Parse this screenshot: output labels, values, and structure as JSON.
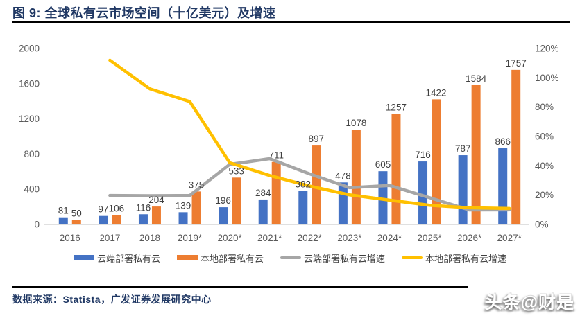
{
  "figure": {
    "title": "图 9: 全球私有云市场空间（十亿美元）及增速",
    "source": "数据来源：Statista，广发证券发展研究中心",
    "watermark": "头条@财是"
  },
  "colors": {
    "title_navy": "#203864",
    "bar_blue": "#4472C4",
    "bar_orange": "#ED7D31",
    "line_gray": "#A6A6A6",
    "line_yellow": "#FFC000",
    "axis_text": "#595959",
    "data_label": "#404040",
    "axis_line": "#d6d6d6"
  },
  "chart_data": {
    "type": "bar",
    "subtype": "combo-bar-line",
    "title": "全球私有云市场空间（十亿美元）及增速",
    "categories": [
      "2016",
      "2017",
      "2018",
      "2019*",
      "2020*",
      "2021*",
      "2022*",
      "2023*",
      "2024*",
      "2025*",
      "2026*",
      "2027*"
    ],
    "series": [
      {
        "name": "云端部署私有云",
        "type": "bar",
        "axis": "left",
        "color": "#4472C4",
        "values": [
          81,
          97,
          116,
          139,
          196,
          284,
          382,
          478,
          605,
          716,
          787,
          866
        ]
      },
      {
        "name": "本地部署私有云",
        "type": "bar",
        "axis": "left",
        "color": "#ED7D31",
        "values": [
          50,
          106,
          204,
          375,
          533,
          711,
          897,
          1078,
          1257,
          1422,
          1584,
          1757
        ]
      },
      {
        "name": "云端部署私有云增速",
        "type": "line",
        "axis": "right",
        "color": "#A6A6A6",
        "values": [
          null,
          19.8,
          19.6,
          19.8,
          41.0,
          44.9,
          34.5,
          25.1,
          26.6,
          18.3,
          9.9,
          10.0
        ]
      },
      {
        "name": "本地部署私有云增速",
        "type": "line",
        "axis": "right",
        "color": "#FFC000",
        "values": [
          null,
          112.0,
          92.5,
          83.8,
          42.1,
          33.4,
          26.2,
          20.2,
          16.6,
          13.1,
          11.4,
          10.9
        ]
      }
    ],
    "left_axis": {
      "min": 0,
      "max": 2000,
      "ticks": [
        0,
        400,
        800,
        1200,
        1600,
        2000
      ]
    },
    "right_axis": {
      "min": 0,
      "max": 120,
      "ticks": [
        0,
        20,
        40,
        60,
        80,
        100,
        120
      ],
      "format": "percent"
    },
    "grid": false,
    "bar_value_labels_shown": true,
    "legend_position": "bottom"
  }
}
